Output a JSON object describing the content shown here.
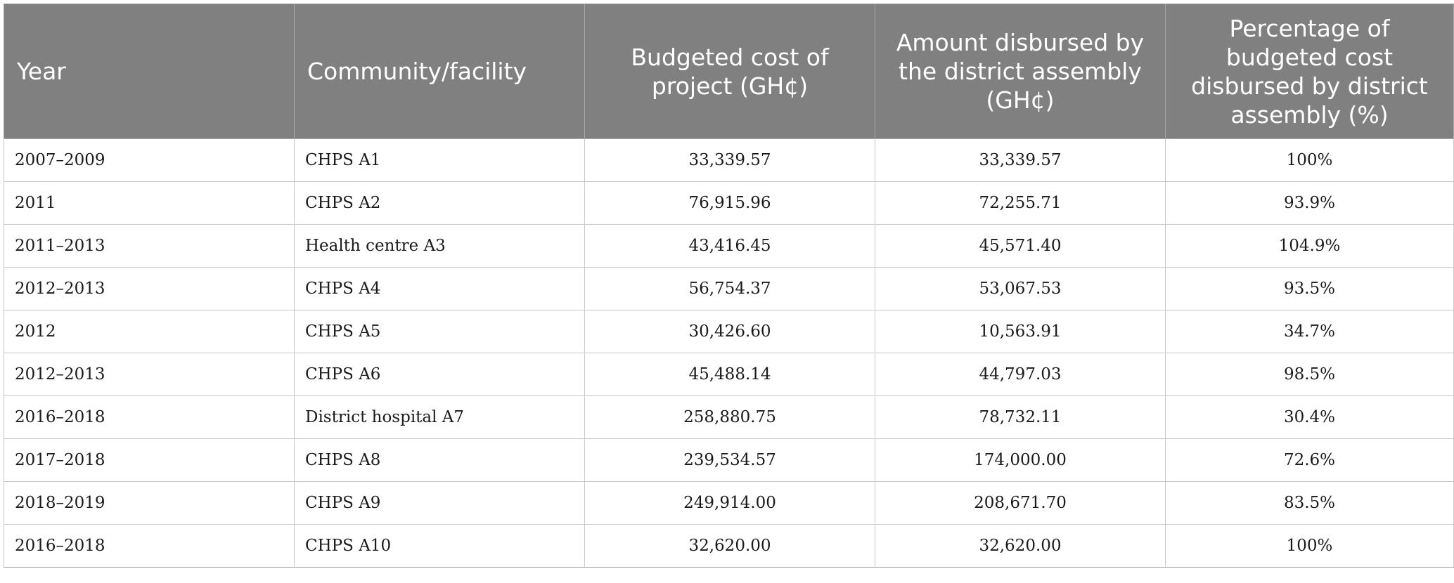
{
  "table": {
    "headers": [
      "Year",
      "Community/facility",
      "Budgeted cost of project (GH¢)",
      "Amount disbursed by the district assembly (GH¢)",
      "Percentage of budgeted cost disbursed by district assembly (%)"
    ],
    "rows": [
      [
        "2007–2009",
        "CHPS A1",
        "33,339.57",
        "33,339.57",
        "100%"
      ],
      [
        "2011",
        "CHPS A2",
        "76,915.96",
        "72,255.71",
        "93.9%"
      ],
      [
        "2011–2013",
        "Health centre A3",
        "43,416.45",
        "45,571.40",
        "104.9%"
      ],
      [
        "2012–2013",
        "CHPS A4",
        "56,754.37",
        "53,067.53",
        "93.5%"
      ],
      [
        "2012",
        "CHPS A5",
        "30,426.60",
        "10,563.91",
        "34.7%"
      ],
      [
        "2012–2013",
        "CHPS A6",
        "45,488.14",
        "44,797.03",
        "98.5%"
      ],
      [
        "2016–2018",
        "District hospital A7",
        "258,880.75",
        "78,732.11",
        "30.4%"
      ],
      [
        "2017–2018",
        "CHPS A8",
        "239,534.57",
        "174,000.00",
        "72.6%"
      ],
      [
        "2018–2019",
        "CHPS A9",
        "249,914.00",
        "208,671.70",
        "83.5%"
      ],
      [
        "2016–2018",
        "CHPS A10",
        "32,620.00",
        "32,620.00",
        "100%"
      ]
    ]
  },
  "colors": {
    "header_bg": "#808080",
    "header_text": "#ffffff",
    "grid": "#c9c9c9"
  }
}
